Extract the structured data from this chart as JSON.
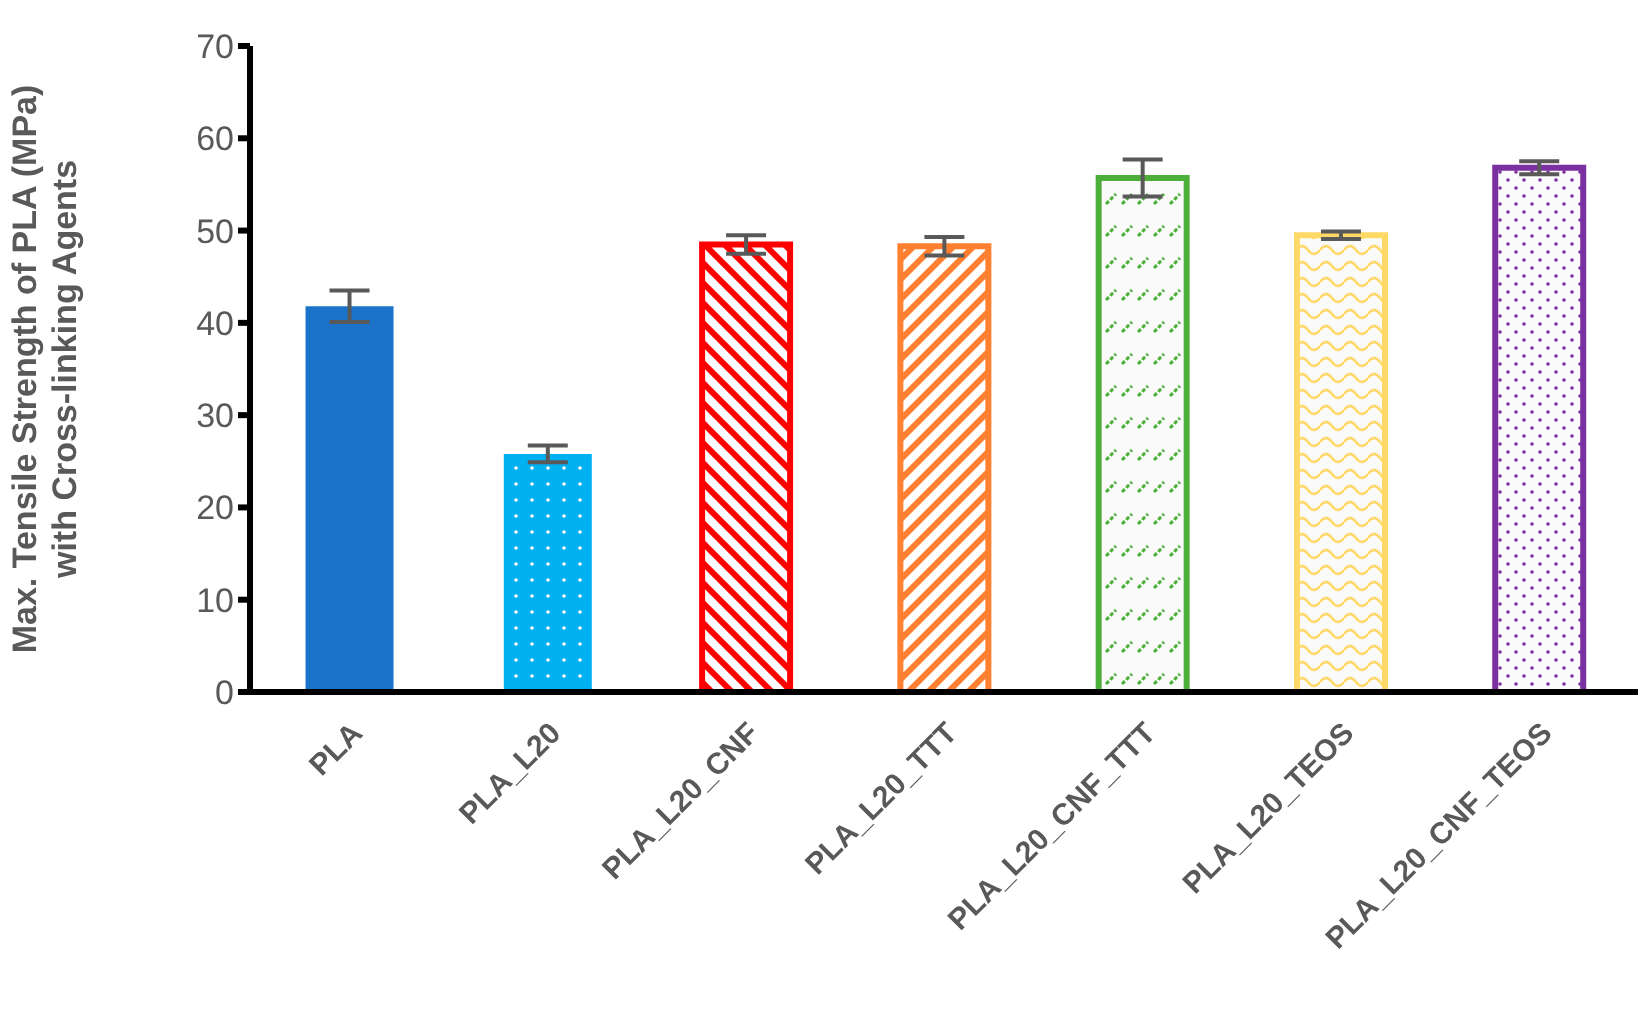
{
  "chart_data": {
    "type": "bar",
    "ylabel": "Max. Tensile Strength of PLA (MPa) with Cross-linking Agents",
    "categories": [
      "PLA",
      "PLA_L20",
      "PLA_L20_CNF",
      "PLA_L20_TTT",
      "PLA_L20_CNF_TTT",
      "PLA_L20_TEOS",
      "PLA_L20_CNF_TEOS"
    ],
    "values": [
      41.8,
      25.8,
      48.5,
      48.3,
      55.7,
      49.5,
      56.8
    ],
    "errors": [
      1.7,
      0.9,
      1.0,
      1.0,
      2.0,
      0.4,
      0.7
    ],
    "colors": [
      "#1a73c8",
      "#00b0f0",
      "#ff0000",
      "#ff8030",
      "#4caf3a",
      "#ffd966",
      "#7a30a0"
    ],
    "ylim": [
      0,
      70
    ],
    "yticks": [
      0,
      10,
      20,
      30,
      40,
      50,
      60,
      70
    ],
    "grid": false
  }
}
